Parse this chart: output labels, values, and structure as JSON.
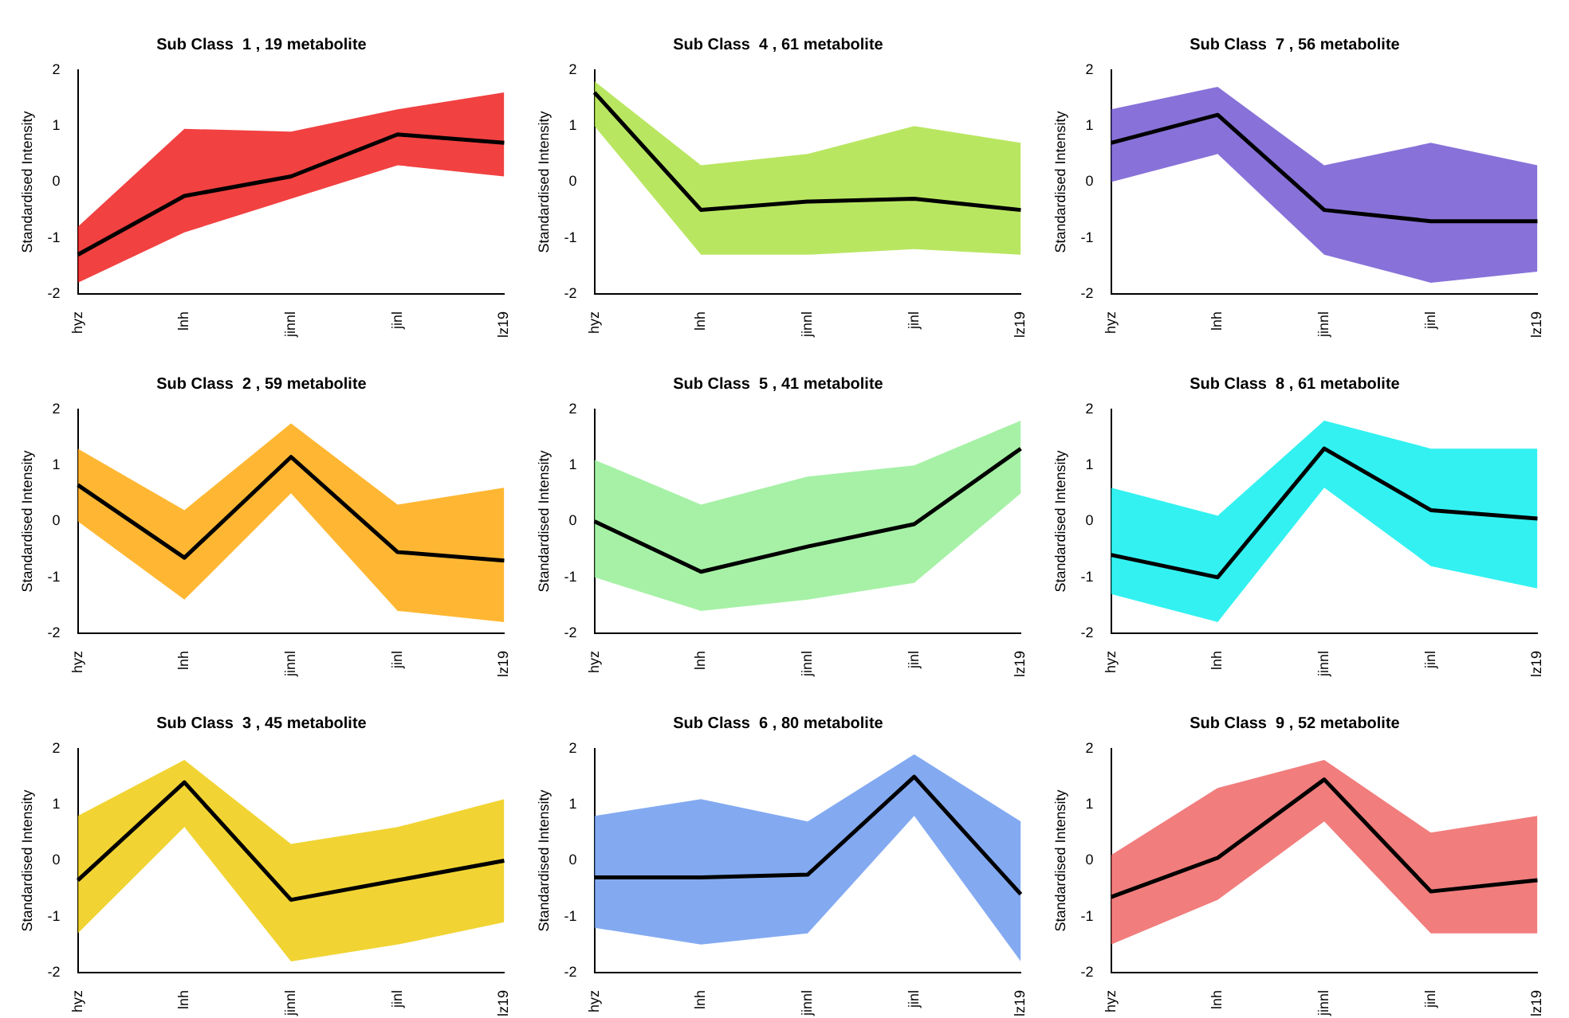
{
  "chart_data": [
    {
      "type": "line",
      "title": "Sub Class  1 , 19 metabolite",
      "ylabel": "Standardised Intensity",
      "categories": [
        "hyz",
        "lnh",
        "jinnl",
        "jinl",
        "lz19"
      ],
      "ylim": [
        -2,
        2
      ],
      "yticks": [
        -2,
        -1,
        0,
        1,
        2
      ],
      "grid": false,
      "legend": false,
      "series": [
        {
          "color": "#ee1111",
          "values": [
            null,
            null,
            null,
            null,
            null
          ],
          "lower": [
            -1.8,
            -0.9,
            -0.3,
            0.3,
            0.1
          ],
          "upper": [
            -0.8,
            0.95,
            0.9,
            1.3,
            1.6
          ]
        },
        {
          "color": "#000000",
          "values": [
            -1.3,
            -0.25,
            0.1,
            0.85,
            0.7
          ]
        }
      ]
    },
    {
      "type": "line",
      "title": "Sub Class  4 , 61 metabolite",
      "ylabel": "Standardised Intensity",
      "categories": [
        "hyz",
        "lnh",
        "jinnl",
        "jinl",
        "lz19"
      ],
      "ylim": [
        -2,
        2
      ],
      "yticks": [
        -2,
        -1,
        0,
        1,
        2
      ],
      "grid": false,
      "legend": false,
      "series": [
        {
          "color": "#a8e03a",
          "values": [
            null,
            null,
            null,
            null,
            null
          ],
          "lower": [
            1.0,
            -1.3,
            -1.3,
            -1.2,
            -1.3
          ],
          "upper": [
            1.8,
            0.3,
            0.5,
            1.0,
            0.7
          ]
        },
        {
          "color": "#000000",
          "values": [
            1.6,
            -0.5,
            -0.35,
            -0.3,
            -0.5
          ]
        }
      ]
    },
    {
      "type": "line",
      "title": "Sub Class  7 , 56 metabolite",
      "ylabel": "Standardised Intensity",
      "categories": [
        "hyz",
        "lnh",
        "jinnl",
        "jinl",
        "lz19"
      ],
      "ylim": [
        -2,
        2
      ],
      "yticks": [
        -2,
        -1,
        0,
        1,
        2
      ],
      "grid": false,
      "legend": false,
      "series": [
        {
          "color": "#6a4fcf",
          "values": [
            null,
            null,
            null,
            null,
            null
          ],
          "lower": [
            0,
            0.5,
            -1.3,
            -1.8,
            -1.6
          ],
          "upper": [
            1.3,
            1.7,
            0.3,
            0.7,
            0.3
          ]
        },
        {
          "color": "#000000",
          "values": [
            0.7,
            1.2,
            -0.5,
            -0.7,
            -0.7
          ]
        }
      ]
    },
    {
      "type": "line",
      "title": "Sub Class  2 , 59 metabolite",
      "ylabel": "Standardised Intensity",
      "categories": [
        "hyz",
        "lnh",
        "jinnl",
        "jinl",
        "lz19"
      ],
      "ylim": [
        -2,
        2
      ],
      "yticks": [
        -2,
        -1,
        0,
        1,
        2
      ],
      "grid": false,
      "legend": false,
      "series": [
        {
          "color": "#ffa500",
          "values": [
            null,
            null,
            null,
            null,
            null
          ],
          "lower": [
            0,
            -1.4,
            0.5,
            -1.6,
            -1.8
          ],
          "upper": [
            1.3,
            0.2,
            1.75,
            0.3,
            0.6
          ]
        },
        {
          "color": "#000000",
          "values": [
            0.65,
            -0.65,
            1.15,
            -0.55,
            -0.7
          ]
        }
      ]
    },
    {
      "type": "line",
      "title": "Sub Class  5 , 41 metabolite",
      "ylabel": "Standardised Intensity",
      "categories": [
        "hyz",
        "lnh",
        "jinnl",
        "jinl",
        "lz19"
      ],
      "ylim": [
        -2,
        2
      ],
      "yticks": [
        -2,
        -1,
        0,
        1,
        2
      ],
      "grid": false,
      "legend": false,
      "series": [
        {
          "color": "#90ee90",
          "values": [
            null,
            null,
            null,
            null,
            null
          ],
          "lower": [
            -1.0,
            -1.6,
            -1.4,
            -1.1,
            0.5
          ],
          "upper": [
            1.1,
            0.3,
            0.8,
            1.0,
            1.8
          ]
        },
        {
          "color": "#000000",
          "values": [
            0,
            -0.9,
            -0.45,
            -0.05,
            1.3
          ]
        }
      ]
    },
    {
      "type": "line",
      "title": "Sub Class  8 , 61 metabolite",
      "ylabel": "Standardised Intensity",
      "categories": [
        "hyz",
        "lnh",
        "jinnl",
        "jinl",
        "lz19"
      ],
      "ylim": [
        -2,
        2
      ],
      "yticks": [
        -2,
        -1,
        0,
        1,
        2
      ],
      "grid": false,
      "legend": false,
      "series": [
        {
          "color": "#00eeee",
          "values": [
            null,
            null,
            null,
            null,
            null
          ],
          "lower": [
            -1.3,
            -1.8,
            0.6,
            -0.8,
            -1.2
          ],
          "upper": [
            0.6,
            0.1,
            1.8,
            1.3,
            1.3
          ]
        },
        {
          "color": "#000000",
          "values": [
            -0.6,
            -1.0,
            1.3,
            0.2,
            0.05
          ]
        }
      ]
    },
    {
      "type": "line",
      "title": "Sub Class  3 , 45 metabolite",
      "ylabel": "Standardised Intensity",
      "categories": [
        "hyz",
        "lnh",
        "jinnl",
        "jinl",
        "lz19"
      ],
      "ylim": [
        -2,
        2
      ],
      "yticks": [
        -2,
        -1,
        0,
        1,
        2
      ],
      "grid": false,
      "legend": false,
      "series": [
        {
          "color": "#eec900",
          "values": [
            null,
            null,
            null,
            null,
            null
          ],
          "lower": [
            -1.3,
            0.6,
            -1.8,
            -1.5,
            -1.1
          ],
          "upper": [
            0.8,
            1.8,
            0.3,
            0.6,
            1.1
          ]
        },
        {
          "color": "#000000",
          "values": [
            -0.35,
            1.4,
            -0.7,
            -0.35,
            0
          ]
        }
      ]
    },
    {
      "type": "line",
      "title": "Sub Class  6 , 80 metabolite",
      "ylabel": "Standardised Intensity",
      "categories": [
        "hyz",
        "lnh",
        "jinnl",
        "jinl",
        "lz19"
      ],
      "ylim": [
        -2,
        2
      ],
      "yticks": [
        -2,
        -1,
        0,
        1,
        2
      ],
      "grid": false,
      "legend": false,
      "series": [
        {
          "color": "#6495ed",
          "values": [
            null,
            null,
            null,
            null,
            null
          ],
          "lower": [
            -1.2,
            -1.5,
            -1.3,
            0.8,
            -1.8
          ],
          "upper": [
            0.8,
            1.1,
            0.7,
            1.9,
            0.7
          ]
        },
        {
          "color": "#000000",
          "values": [
            -0.3,
            -0.3,
            -0.25,
            1.5,
            -0.6
          ]
        }
      ]
    },
    {
      "type": "line",
      "title": "Sub Class  9 , 52 metabolite",
      "ylabel": "Standardised Intensity",
      "categories": [
        "hyz",
        "lnh",
        "jinnl",
        "jinl",
        "lz19"
      ],
      "ylim": [
        -2,
        2
      ],
      "yticks": [
        -2,
        -1,
        0,
        1,
        2
      ],
      "grid": false,
      "legend": false,
      "series": [
        {
          "color": "#ee5c5c",
          "values": [
            null,
            null,
            null,
            null,
            null
          ],
          "lower": [
            -1.5,
            -0.7,
            0.7,
            -1.3,
            -1.3
          ],
          "upper": [
            0.1,
            1.3,
            1.8,
            0.5,
            0.8
          ]
        },
        {
          "color": "#000000",
          "values": [
            -0.65,
            0.05,
            1.45,
            -0.55,
            -0.35
          ]
        }
      ]
    }
  ]
}
